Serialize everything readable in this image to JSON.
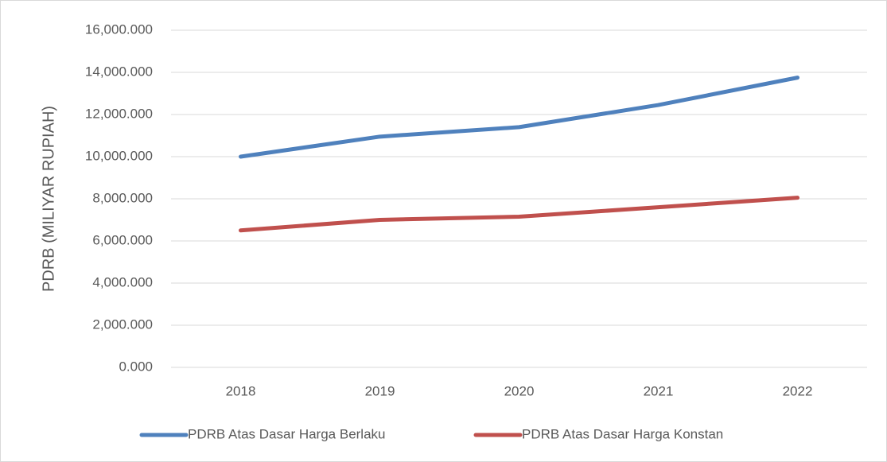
{
  "chart_data": {
    "type": "line",
    "y_label": "PDRB (MILIYAR RUPIAH)",
    "categories": [
      "2018",
      "2019",
      "2020",
      "2021",
      "2022"
    ],
    "series": [
      {
        "name": "PDRB Atas Dasar Harga Berlaku",
        "color": "#4f81bd",
        "values": [
          10000,
          10950,
          11400,
          12450,
          13750
        ]
      },
      {
        "name": "PDRB Atas Dasar Harga Konstan",
        "color": "#c0504d",
        "values": [
          6500,
          7000,
          7150,
          7600,
          8050
        ]
      }
    ],
    "ylim": [
      0,
      16000
    ],
    "yticks": [
      {
        "value": 0,
        "label": "0.000"
      },
      {
        "value": 2000,
        "label": "2,000.000"
      },
      {
        "value": 4000,
        "label": "4,000.000"
      },
      {
        "value": 6000,
        "label": "6,000.000"
      },
      {
        "value": 8000,
        "label": "8,000.000"
      },
      {
        "value": 10000,
        "label": "10,000.000"
      },
      {
        "value": 12000,
        "label": "12,000.000"
      },
      {
        "value": 14000,
        "label": "14,000.000"
      },
      {
        "value": 16000,
        "label": "16,000.000"
      }
    ],
    "grid": true,
    "legend": "bottom"
  }
}
